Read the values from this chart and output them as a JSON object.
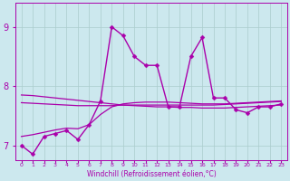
{
  "xlabel": "Windchill (Refroidissement éolien,°C)",
  "xlim": [
    -0.5,
    23.5
  ],
  "ylim": [
    6.75,
    9.4
  ],
  "yticks": [
    7,
    8,
    9
  ],
  "bg_color": "#cce8ee",
  "grid_color": "#aacccc",
  "line_color": "#aa00aa",
  "line1_x": [
    0,
    1,
    2,
    3,
    4,
    5,
    6,
    7,
    8,
    9,
    10,
    11,
    12,
    13,
    14,
    15,
    16,
    17,
    18,
    19,
    20,
    21,
    22,
    23
  ],
  "line1_y": [
    7.0,
    6.85,
    7.15,
    7.2,
    7.25,
    7.1,
    7.35,
    7.75,
    9.0,
    8.85,
    8.5,
    8.35,
    8.35,
    7.65,
    7.65,
    8.5,
    8.82,
    7.8,
    7.8,
    7.6,
    7.55,
    7.65,
    7.65,
    7.7
  ],
  "line2_x": [
    0,
    1,
    2,
    3,
    4,
    5,
    6,
    7,
    8,
    9,
    10,
    11,
    12,
    13,
    14,
    15,
    16,
    17,
    18,
    19,
    20,
    21,
    22,
    23
  ],
  "line2_y": [
    7.85,
    7.84,
    7.82,
    7.8,
    7.78,
    7.76,
    7.74,
    7.72,
    7.7,
    7.68,
    7.67,
    7.66,
    7.65,
    7.65,
    7.64,
    7.64,
    7.63,
    7.63,
    7.63,
    7.64,
    7.65,
    7.66,
    7.67,
    7.68
  ],
  "line3_x": [
    0,
    1,
    2,
    3,
    4,
    5,
    6,
    7,
    8,
    9,
    10,
    11,
    12,
    13,
    14,
    15,
    16,
    17,
    18,
    19,
    20,
    21,
    22,
    23
  ],
  "line3_y": [
    7.72,
    7.71,
    7.7,
    7.69,
    7.68,
    7.67,
    7.67,
    7.67,
    7.67,
    7.68,
    7.68,
    7.68,
    7.68,
    7.68,
    7.68,
    7.68,
    7.68,
    7.68,
    7.69,
    7.7,
    7.71,
    7.72,
    7.73,
    7.74
  ],
  "line4_x": [
    0,
    1,
    2,
    3,
    4,
    5,
    6,
    7,
    8,
    9,
    10,
    11,
    12,
    13,
    14,
    15,
    16,
    17,
    18,
    19,
    20,
    21,
    22,
    23
  ],
  "line4_y": [
    7.15,
    7.18,
    7.22,
    7.26,
    7.29,
    7.28,
    7.35,
    7.52,
    7.65,
    7.7,
    7.72,
    7.73,
    7.73,
    7.73,
    7.72,
    7.71,
    7.7,
    7.7,
    7.7,
    7.71,
    7.72,
    7.73,
    7.74,
    7.75
  ]
}
